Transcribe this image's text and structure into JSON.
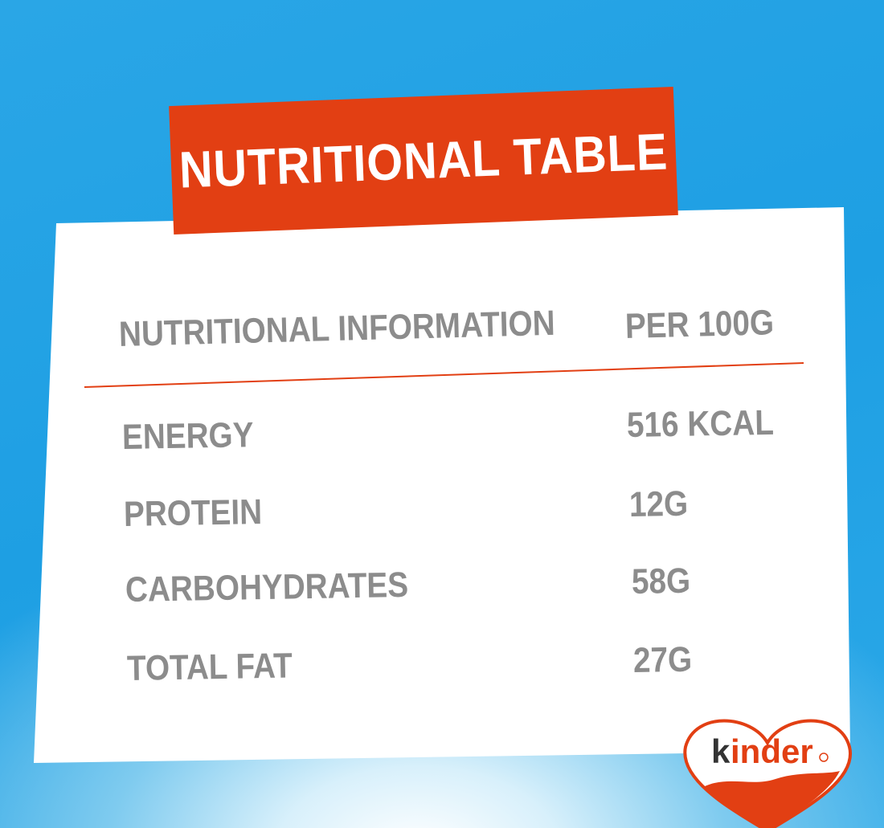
{
  "title": "NUTRITIONAL TABLE",
  "table": {
    "header": {
      "label": "NUTRITIONAL INFORMATION",
      "value": "PER 100G"
    },
    "rows": [
      {
        "label": "ENERGY",
        "value": "516 KCAL"
      },
      {
        "label": "PROTEIN",
        "value": "12G"
      },
      {
        "label": "CARBOHYDRATES",
        "value": "58G"
      },
      {
        "label": "TOTAL FAT",
        "value": "27G"
      }
    ]
  },
  "logo": {
    "text": "kinder"
  },
  "colors": {
    "background": "#1e9fe3",
    "banner": "#e23f13",
    "text": "#8c8c8c",
    "rule": "#e23f13"
  }
}
